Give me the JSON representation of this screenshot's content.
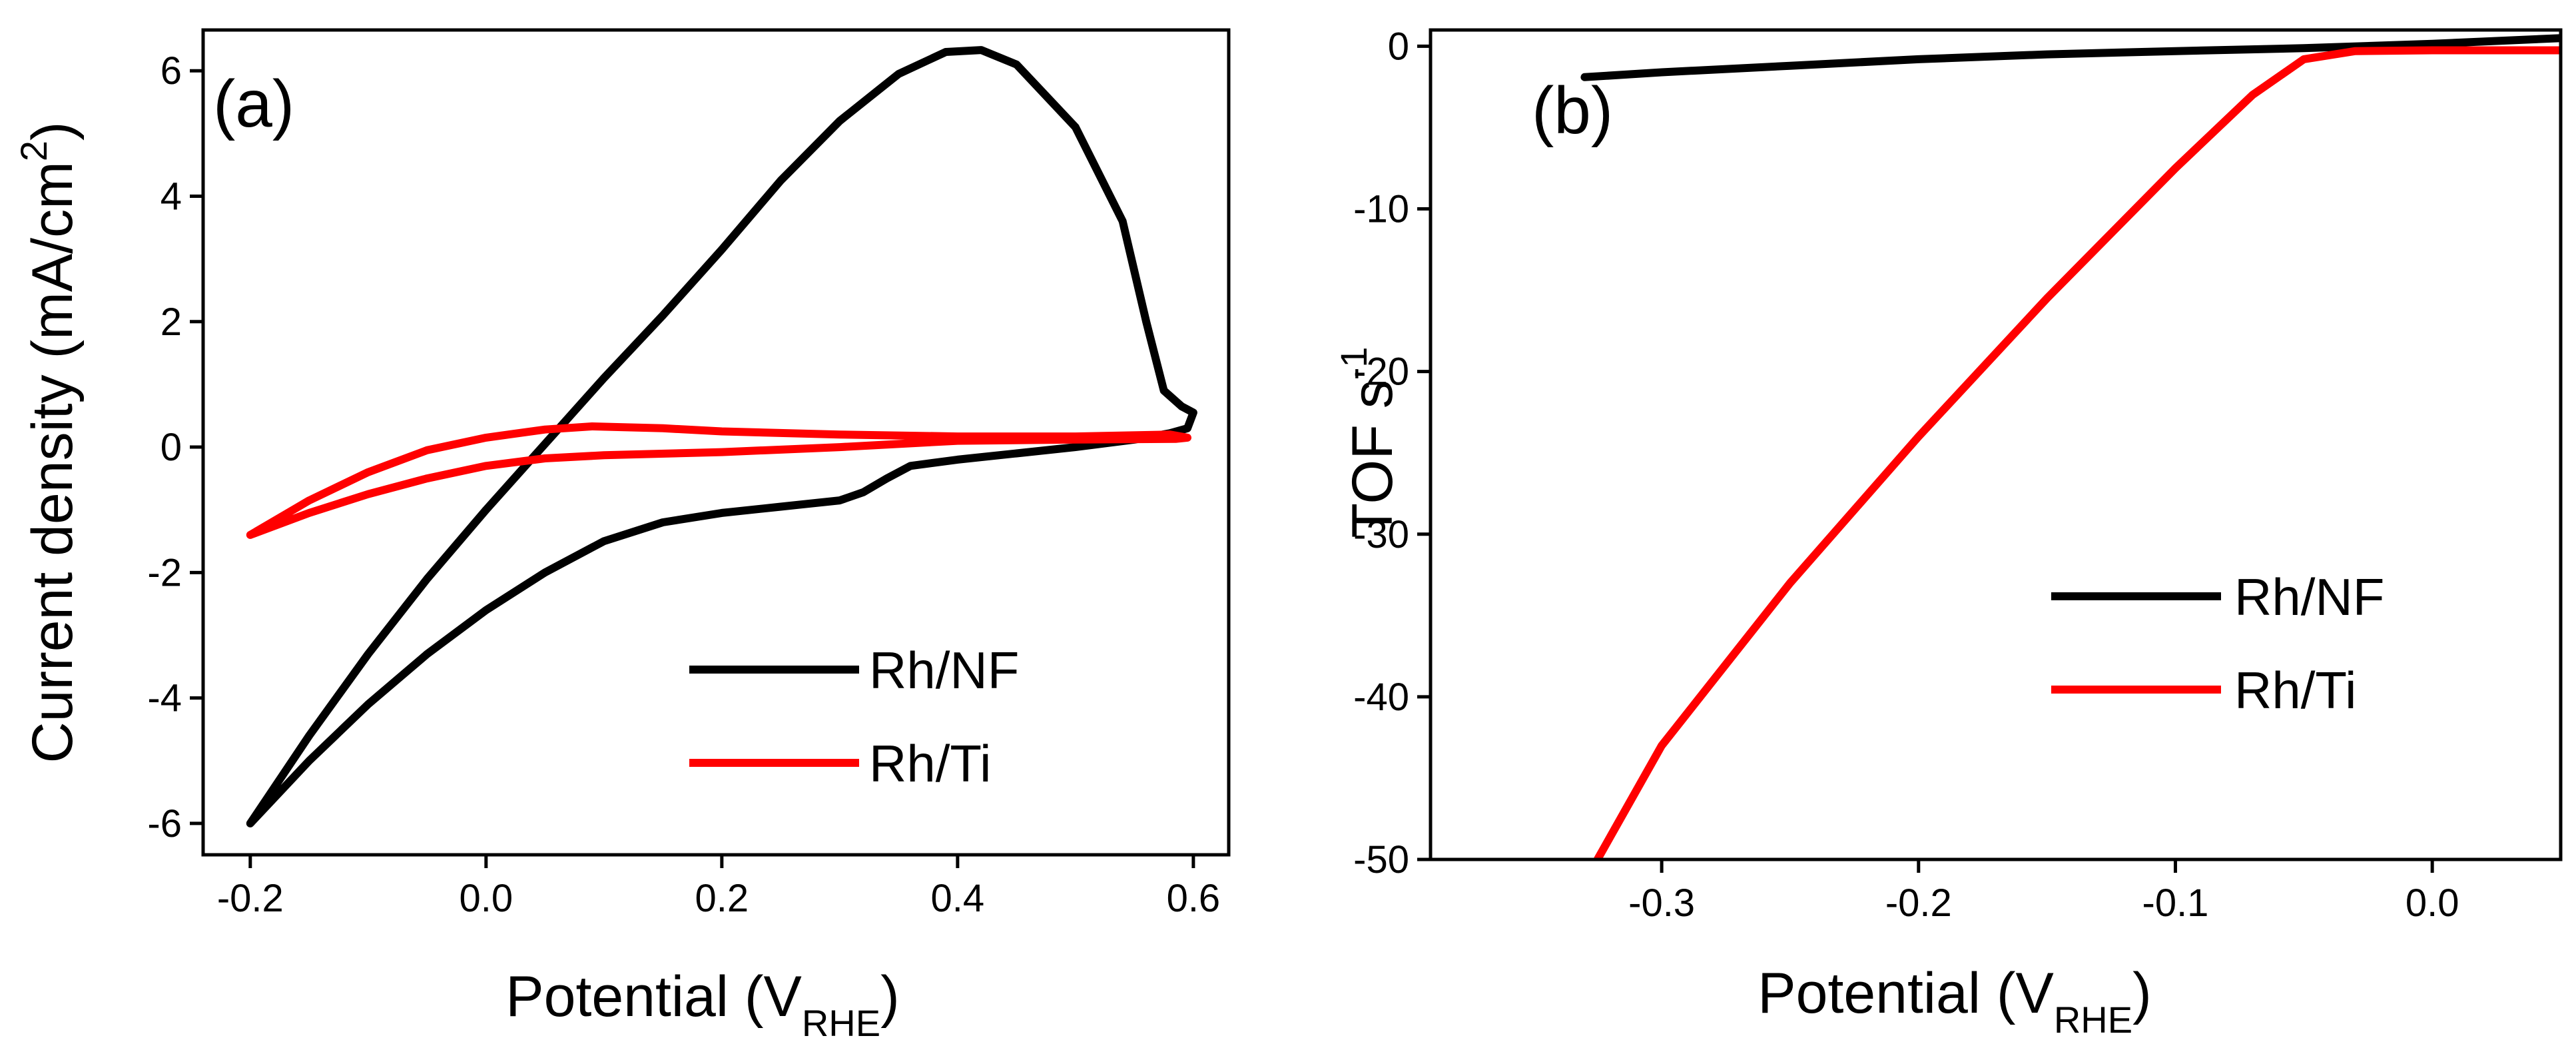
{
  "chart_data": [
    {
      "panel_label": "(a)",
      "type": "line",
      "xlabel": {
        "main": "Potential (V",
        "sub": "RHE",
        "close": ")"
      },
      "ylabel": {
        "main": "Current density (mA/cm",
        "sup": "2",
        "close": ")"
      },
      "xlim": [
        -0.24,
        0.63
      ],
      "ylim": [
        -6.5,
        6.65
      ],
      "xticks": [
        -0.2,
        0.0,
        0.2,
        0.4,
        0.6
      ],
      "xtick_labels": [
        "-0.2",
        "0.0",
        "0.2",
        "0.4",
        "0.6"
      ],
      "yticks": [
        -6,
        -4,
        -2,
        0,
        2,
        4,
        6
      ],
      "ytick_labels": [
        "-6",
        "-4",
        "-2",
        "0",
        "2",
        "4",
        "6"
      ],
      "legend_position": "bottom-right",
      "series": [
        {
          "name": "Rh/NF",
          "color": "#000000",
          "points": [
            [
              -0.2,
              -6.0
            ],
            [
              -0.15,
              -4.6
            ],
            [
              -0.1,
              -3.3
            ],
            [
              -0.05,
              -2.1
            ],
            [
              0.0,
              -1.0
            ],
            [
              0.05,
              0.05
            ],
            [
              0.1,
              1.1
            ],
            [
              0.15,
              2.1
            ],
            [
              0.2,
              3.15
            ],
            [
              0.25,
              4.25
            ],
            [
              0.3,
              5.2
            ],
            [
              0.35,
              5.95
            ],
            [
              0.39,
              6.3
            ],
            [
              0.42,
              6.33
            ],
            [
              0.45,
              6.1
            ],
            [
              0.5,
              5.1
            ],
            [
              0.54,
              3.6
            ],
            [
              0.56,
              2.0
            ],
            [
              0.575,
              0.9
            ],
            [
              0.59,
              0.65
            ],
            [
              0.6,
              0.55
            ],
            [
              0.595,
              0.3
            ],
            [
              0.58,
              0.22
            ],
            [
              0.55,
              0.12
            ],
            [
              0.5,
              0.0
            ],
            [
              0.45,
              -0.1
            ],
            [
              0.4,
              -0.2
            ],
            [
              0.36,
              -0.3
            ],
            [
              0.34,
              -0.5
            ],
            [
              0.32,
              -0.72
            ],
            [
              0.3,
              -0.85
            ],
            [
              0.25,
              -0.95
            ],
            [
              0.2,
              -1.05
            ],
            [
              0.15,
              -1.2
            ],
            [
              0.1,
              -1.5
            ],
            [
              0.05,
              -2.0
            ],
            [
              0.0,
              -2.6
            ],
            [
              -0.05,
              -3.3
            ],
            [
              -0.1,
              -4.1
            ],
            [
              -0.15,
              -5.0
            ],
            [
              -0.2,
              -6.0
            ]
          ]
        },
        {
          "name": "Rh/Ti",
          "color": "#ff0000",
          "points": [
            [
              -0.2,
              -1.4
            ],
            [
              -0.15,
              -0.85
            ],
            [
              -0.1,
              -0.4
            ],
            [
              -0.05,
              -0.05
            ],
            [
              0.0,
              0.15
            ],
            [
              0.05,
              0.28
            ],
            [
              0.09,
              0.33
            ],
            [
              0.15,
              0.3
            ],
            [
              0.2,
              0.25
            ],
            [
              0.3,
              0.2
            ],
            [
              0.4,
              0.17
            ],
            [
              0.5,
              0.17
            ],
            [
              0.58,
              0.2
            ],
            [
              0.595,
              0.15
            ],
            [
              0.585,
              0.13
            ],
            [
              0.5,
              0.12
            ],
            [
              0.4,
              0.1
            ],
            [
              0.3,
              0.0
            ],
            [
              0.2,
              -0.08
            ],
            [
              0.1,
              -0.13
            ],
            [
              0.05,
              -0.18
            ],
            [
              0.0,
              -0.3
            ],
            [
              -0.05,
              -0.5
            ],
            [
              -0.1,
              -0.75
            ],
            [
              -0.15,
              -1.05
            ],
            [
              -0.2,
              -1.4
            ]
          ]
        }
      ]
    },
    {
      "panel_label": "(b)",
      "type": "line",
      "xlabel": {
        "main": "Potential (V",
        "sub": "RHE",
        "close": ")"
      },
      "ylabel": {
        "main": "TOF s",
        "sup": "-1",
        "close": ""
      },
      "xlim": [
        -0.39,
        0.05
      ],
      "ylim": [
        -50,
        1.0
      ],
      "xticks": [
        -0.3,
        -0.2,
        -0.1,
        0.0
      ],
      "xtick_labels": [
        "-0.3",
        "-0.2",
        "-0.1",
        "0.0"
      ],
      "yticks": [
        -50,
        -40,
        -30,
        -20,
        -10,
        0
      ],
      "ytick_labels": [
        "-50",
        "-40",
        "-30",
        "-20",
        "-10",
        "0"
      ],
      "legend_position": "right",
      "series": [
        {
          "name": "Rh/NF",
          "color": "#000000",
          "points": [
            [
              -0.33,
              -1.9
            ],
            [
              -0.3,
              -1.6
            ],
            [
              -0.25,
              -1.2
            ],
            [
              -0.2,
              -0.8
            ],
            [
              -0.15,
              -0.5
            ],
            [
              -0.1,
              -0.3
            ],
            [
              -0.05,
              -0.12
            ],
            [
              0.0,
              0.15
            ],
            [
              0.05,
              0.5
            ]
          ]
        },
        {
          "name": "Rh/Ti",
          "color": "#ff0000",
          "points": [
            [
              -0.325,
              -50
            ],
            [
              -0.3,
              -43
            ],
            [
              -0.25,
              -33
            ],
            [
              -0.2,
              -24
            ],
            [
              -0.15,
              -15.5
            ],
            [
              -0.1,
              -7.5
            ],
            [
              -0.07,
              -3.0
            ],
            [
              -0.05,
              -0.8
            ],
            [
              -0.03,
              -0.3
            ],
            [
              0.0,
              -0.25
            ],
            [
              0.05,
              -0.25
            ]
          ]
        }
      ]
    }
  ]
}
